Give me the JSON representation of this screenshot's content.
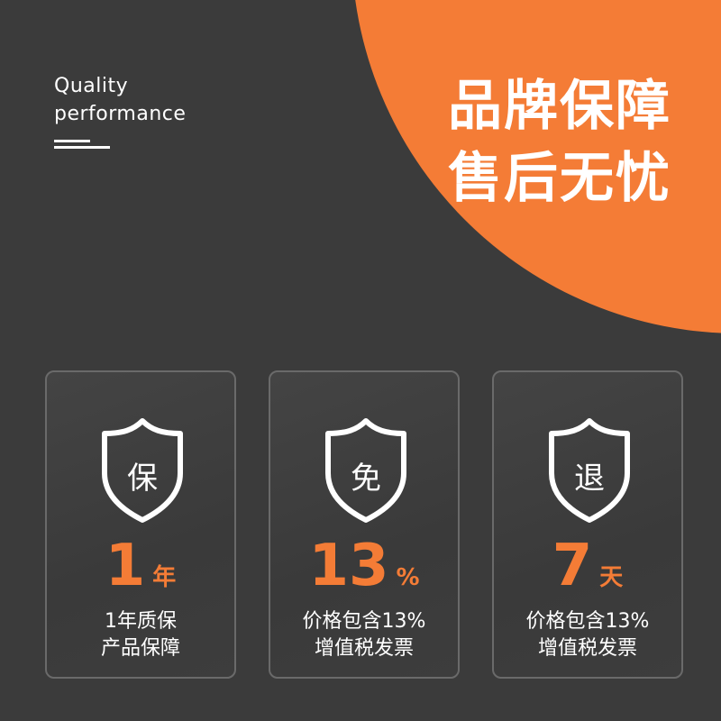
{
  "colors": {
    "accent": "#f47c36",
    "background": "#3b3b3b"
  },
  "tagline": {
    "line1": "Quality",
    "line2": "performance"
  },
  "headline": {
    "line1": "品牌保障",
    "line2": "售后无忧"
  },
  "cards": [
    {
      "icon": "shield-icon",
      "char": "保",
      "value": "1",
      "unit": "年",
      "desc1": "1年质保",
      "desc2": "产品保障"
    },
    {
      "icon": "shield-icon",
      "char": "免",
      "value": "13",
      "unit": "%",
      "desc1": "价格包含13%",
      "desc2": "增值税发票"
    },
    {
      "icon": "shield-icon",
      "char": "退",
      "value": "7",
      "unit": "天",
      "desc1": "价格包含13%",
      "desc2": "增值税发票"
    }
  ]
}
